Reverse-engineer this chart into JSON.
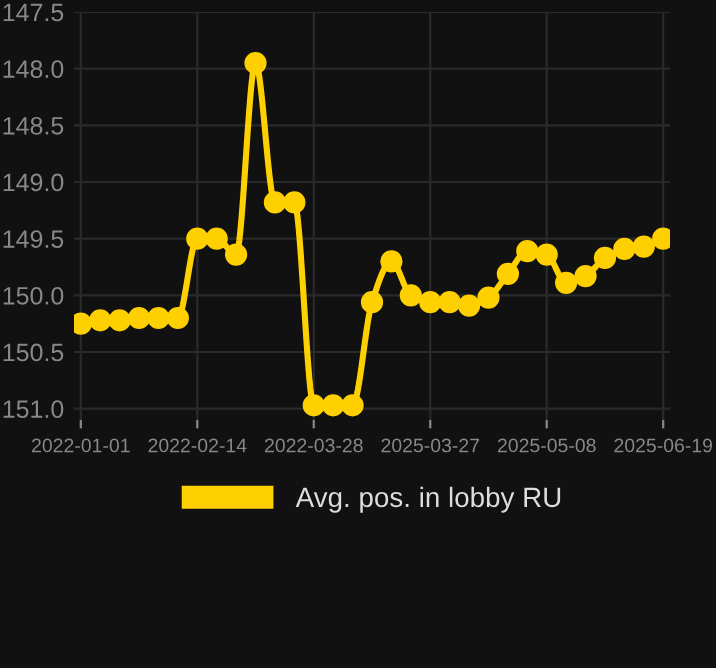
{
  "chart_data": {
    "type": "line",
    "categories": [
      "2022-01-01",
      null,
      null,
      null,
      null,
      null,
      "2022-02-14",
      null,
      null,
      null,
      null,
      null,
      "2022-03-28",
      null,
      null,
      null,
      null,
      null,
      "2025-03-27",
      null,
      null,
      null,
      null,
      null,
      "2025-05-08",
      null,
      null,
      null,
      null,
      null,
      "2025-06-19"
    ],
    "series": [
      {
        "name": "Avg. pos. in lobby RU",
        "color": "#ffd000",
        "values": [
          150.25,
          150.22,
          150.22,
          150.2,
          150.2,
          150.2,
          149.5,
          149.5,
          149.64,
          147.95,
          149.18,
          149.18,
          150.97,
          150.97,
          150.97,
          150.06,
          149.7,
          150.0,
          150.06,
          150.06,
          150.09,
          150.02,
          149.81,
          149.61,
          149.64,
          149.89,
          149.83,
          149.67,
          149.59,
          149.57,
          149.5
        ]
      }
    ],
    "ylim": [
      151.1,
      147.5
    ],
    "yticks": [
      {
        "value": 147.5,
        "label": "147.5"
      },
      {
        "value": 148,
        "label": "148.0"
      },
      {
        "value": 148.5,
        "label": "148.5"
      },
      {
        "value": 149,
        "label": "149.0"
      },
      {
        "value": 149.5,
        "label": "149.5"
      },
      {
        "value": 150,
        "label": "150.0"
      },
      {
        "value": 150.5,
        "label": "150.5"
      },
      {
        "value": 151,
        "label": "151.0"
      }
    ],
    "grid": true,
    "legend": "bottom",
    "marker": "circle",
    "line_style": "solid"
  }
}
